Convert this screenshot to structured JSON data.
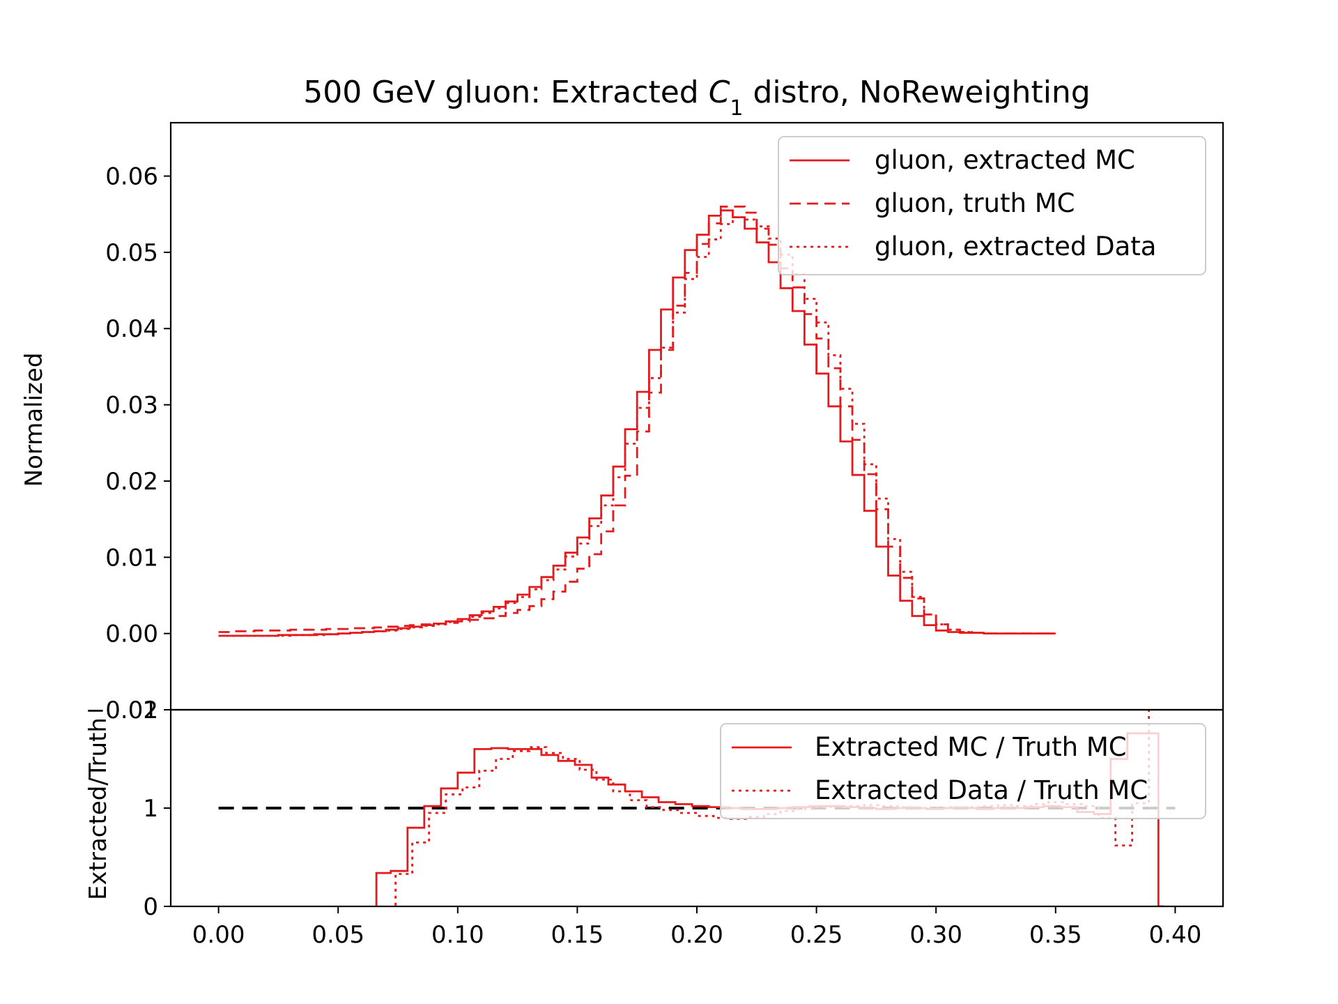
{
  "chart_data": [
    {
      "type": "line",
      "panel": "main",
      "title_prefix": "500 GeV gluon: Extracted ",
      "title_var": "C",
      "title_sub": "1",
      "title_suffix": " distro, NoReweighting",
      "xlabel": "",
      "ylabel": "Normalized",
      "xlim": [
        -0.02,
        0.42
      ],
      "ylim": [
        -0.01,
        0.067
      ],
      "x_ticks": [
        "0.00",
        "0.05",
        "0.10",
        "0.15",
        "0.20",
        "0.25",
        "0.30",
        "0.35",
        "0.40"
      ],
      "y_ticks": [
        "−0.01",
        "0.00",
        "0.01",
        "0.02",
        "0.03",
        "0.04",
        "0.05",
        "0.06"
      ],
      "y_tick_values": [
        -0.01,
        0,
        0.01,
        0.02,
        0.03,
        0.04,
        0.05,
        0.06
      ],
      "bin_edges_start": 0.0,
      "bin_width": 0.005,
      "legend_position": "upper right",
      "series": [
        {
          "name": "gluon, extracted MC",
          "style": "solid",
          "color": "#e41a1c",
          "values": [
            -0.0003,
            -0.0003,
            -0.0003,
            -0.0003,
            -0.0003,
            -0.0002,
            -0.0002,
            -0.0002,
            -0.0001,
            -0.0001,
            0.0,
            0.0001,
            0.0002,
            0.0003,
            0.0005,
            0.0007,
            0.0009,
            0.0011,
            0.0013,
            0.0016,
            0.0019,
            0.0024,
            0.0029,
            0.0035,
            0.0042,
            0.0051,
            0.0061,
            0.0074,
            0.0089,
            0.0106,
            0.0126,
            0.0151,
            0.0181,
            0.0219,
            0.0268,
            0.0317,
            0.0372,
            0.0425,
            0.0467,
            0.0503,
            0.0523,
            0.0548,
            0.0555,
            0.0546,
            0.0531,
            0.0513,
            0.0487,
            0.0453,
            0.0423,
            0.0379,
            0.0341,
            0.0298,
            0.0252,
            0.0208,
            0.0161,
            0.0114,
            0.0076,
            0.0043,
            0.0023,
            0.0011,
            0.0004,
            0.0002,
            0.0001,
            0.0001,
            0.0,
            0.0,
            0.0,
            0.0,
            0.0,
            0.0
          ]
        },
        {
          "name": "gluon, truth MC",
          "style": "dashed",
          "color": "#e41a1c",
          "values": [
            0.0002,
            0.0003,
            0.0003,
            0.0004,
            0.0004,
            0.0004,
            0.0005,
            0.0005,
            0.0005,
            0.0006,
            0.0006,
            0.0007,
            0.0007,
            0.0008,
            0.0009,
            0.001,
            0.0011,
            0.0012,
            0.0013,
            0.0014,
            0.0016,
            0.0018,
            0.002,
            0.0023,
            0.0027,
            0.0031,
            0.0036,
            0.0045,
            0.0055,
            0.0068,
            0.0085,
            0.0104,
            0.0134,
            0.0168,
            0.0207,
            0.0265,
            0.0316,
            0.0372,
            0.043,
            0.0473,
            0.0511,
            0.0538,
            0.056,
            0.056,
            0.0552,
            0.0531,
            0.051,
            0.0479,
            0.0454,
            0.0419,
            0.0387,
            0.0348,
            0.0298,
            0.0254,
            0.0209,
            0.0163,
            0.0114,
            0.0073,
            0.0046,
            0.0025,
            0.0012,
            0.0005,
            0.0002,
            0.0001,
            0.0,
            0.0,
            0.0,
            0.0,
            0.0,
            0.0
          ]
        },
        {
          "name": "gluon, extracted Data",
          "style": "dotted",
          "color": "#e41a1c",
          "values": [
            -0.0003,
            -0.0003,
            -0.0003,
            -0.0003,
            -0.0003,
            -0.0003,
            -0.0002,
            -0.0002,
            -0.0002,
            -0.0001,
            0.0,
            0.0001,
            0.0002,
            0.0003,
            0.0004,
            0.0006,
            0.0008,
            0.001,
            0.0012,
            0.0015,
            0.0018,
            0.0022,
            0.0027,
            0.0033,
            0.004,
            0.0048,
            0.0058,
            0.007,
            0.0084,
            0.0101,
            0.0118,
            0.0141,
            0.0168,
            0.0205,
            0.0249,
            0.0296,
            0.0335,
            0.0375,
            0.0421,
            0.0465,
            0.0494,
            0.0517,
            0.0537,
            0.0546,
            0.0543,
            0.0534,
            0.0518,
            0.0497,
            0.0471,
            0.0439,
            0.0408,
            0.0365,
            0.0321,
            0.0275,
            0.0222,
            0.0177,
            0.0124,
            0.0081,
            0.0048,
            0.0025,
            0.0012,
            0.0005,
            0.0002,
            0.0001,
            0.0,
            0.0,
            0.0,
            0.0,
            0.0,
            0.0
          ]
        }
      ]
    },
    {
      "type": "line",
      "panel": "ratio",
      "xlabel": "",
      "ylabel": "Extracted/Truth",
      "xlim": [
        -0.02,
        0.42
      ],
      "ylim": [
        0,
        2
      ],
      "y_ticks": [
        "0",
        "1",
        "2"
      ],
      "y_tick_values": [
        0,
        1,
        2
      ],
      "reference_line": {
        "y": 1,
        "style": "dashed",
        "color": "#000000"
      },
      "legend_position": "upper right",
      "series": [
        {
          "name": "Extracted MC / Truth MC",
          "style": "solid",
          "color": "#e41a1c",
          "steps": [
            [
              0.066,
              0.072,
              0.34
            ],
            [
              0.072,
              0.079,
              0.36
            ],
            [
              0.079,
              0.086,
              0.8
            ],
            [
              0.086,
              0.093,
              1.02
            ],
            [
              0.093,
              0.1,
              1.2
            ],
            [
              0.1,
              0.107,
              1.36
            ],
            [
              0.107,
              0.114,
              1.6
            ],
            [
              0.114,
              0.121,
              1.61
            ],
            [
              0.121,
              0.128,
              1.6
            ],
            [
              0.128,
              0.135,
              1.6
            ],
            [
              0.135,
              0.142,
              1.54
            ],
            [
              0.142,
              0.149,
              1.48
            ],
            [
              0.149,
              0.156,
              1.44
            ],
            [
              0.156,
              0.163,
              1.31
            ],
            [
              0.163,
              0.17,
              1.24
            ],
            [
              0.17,
              0.177,
              1.17
            ],
            [
              0.177,
              0.184,
              1.11
            ],
            [
              0.184,
              0.191,
              1.06
            ],
            [
              0.191,
              0.198,
              1.04
            ],
            [
              0.198,
              0.205,
              1.02
            ],
            [
              0.205,
              0.212,
              1.01
            ],
            [
              0.212,
              0.219,
              1.0
            ],
            [
              0.219,
              0.226,
              0.99
            ],
            [
              0.226,
              0.233,
              0.99
            ],
            [
              0.233,
              0.24,
              1.0
            ],
            [
              0.24,
              0.247,
              1.01
            ],
            [
              0.247,
              0.254,
              1.02
            ],
            [
              0.254,
              0.261,
              1.02
            ],
            [
              0.261,
              0.268,
              1.01
            ],
            [
              0.268,
              0.275,
              1.0
            ],
            [
              0.275,
              0.282,
              0.99
            ],
            [
              0.282,
              0.289,
              1.0
            ],
            [
              0.289,
              0.296,
              1.0
            ],
            [
              0.296,
              0.303,
              0.99
            ],
            [
              0.303,
              0.31,
              1.0
            ],
            [
              0.31,
              0.317,
              1.0
            ],
            [
              0.317,
              0.324,
              0.99
            ],
            [
              0.324,
              0.331,
              1.0
            ],
            [
              0.331,
              0.338,
              1.0
            ],
            [
              0.338,
              0.345,
              1.01
            ],
            [
              0.345,
              0.352,
              1.02
            ],
            [
              0.352,
              0.359,
              1.01
            ],
            [
              0.359,
              0.366,
              0.96
            ],
            [
              0.366,
              0.373,
              0.94
            ],
            [
              0.373,
              0.38,
              1.5
            ],
            [
              0.38,
              0.387,
              1.76
            ],
            [
              0.387,
              0.393,
              1.76
            ],
            [
              0.393,
              0.395,
              0.0
            ]
          ]
        },
        {
          "name": "Extracted Data / Truth MC",
          "style": "dotted",
          "color": "#e41a1c",
          "steps": [
            [
              0.068,
              0.074,
              -0.1
            ],
            [
              0.074,
              0.081,
              0.33
            ],
            [
              0.081,
              0.088,
              0.65
            ],
            [
              0.088,
              0.095,
              0.95
            ],
            [
              0.095,
              0.102,
              1.14
            ],
            [
              0.102,
              0.109,
              1.21
            ],
            [
              0.109,
              0.116,
              1.38
            ],
            [
              0.116,
              0.123,
              1.5
            ],
            [
              0.123,
              0.13,
              1.58
            ],
            [
              0.13,
              0.137,
              1.62
            ],
            [
              0.137,
              0.144,
              1.56
            ],
            [
              0.144,
              0.151,
              1.5
            ],
            [
              0.151,
              0.158,
              1.39
            ],
            [
              0.158,
              0.165,
              1.29
            ],
            [
              0.165,
              0.172,
              1.17
            ],
            [
              0.172,
              0.179,
              1.08
            ],
            [
              0.179,
              0.186,
              1.01
            ],
            [
              0.186,
              0.193,
              0.98
            ],
            [
              0.193,
              0.2,
              0.95
            ],
            [
              0.2,
              0.207,
              0.92
            ],
            [
              0.207,
              0.214,
              0.9
            ],
            [
              0.214,
              0.221,
              0.89
            ],
            [
              0.221,
              0.228,
              0.91
            ],
            [
              0.228,
              0.235,
              0.94
            ],
            [
              0.235,
              0.242,
              0.97
            ],
            [
              0.242,
              0.249,
              0.99
            ],
            [
              0.249,
              0.256,
              1.01
            ],
            [
              0.256,
              0.263,
              1.02
            ],
            [
              0.263,
              0.27,
              1.02
            ],
            [
              0.27,
              0.277,
              1.03
            ],
            [
              0.277,
              0.284,
              1.02
            ],
            [
              0.284,
              0.291,
              1.01
            ],
            [
              0.291,
              0.298,
              1.0
            ],
            [
              0.298,
              0.305,
              1.0
            ],
            [
              0.305,
              0.312,
              1.01
            ],
            [
              0.312,
              0.319,
              1.01
            ],
            [
              0.319,
              0.326,
              1.02
            ],
            [
              0.326,
              0.333,
              1.03
            ],
            [
              0.333,
              0.34,
              1.02
            ],
            [
              0.34,
              0.347,
              1.04
            ],
            [
              0.347,
              0.354,
              1.06
            ],
            [
              0.354,
              0.361,
              1.04
            ],
            [
              0.361,
              0.368,
              1.02
            ],
            [
              0.368,
              0.375,
              0.9
            ],
            [
              0.375,
              0.382,
              0.62
            ],
            [
              0.382,
              0.389,
              1.05
            ],
            [
              0.389,
              0.393,
              2.1
            ]
          ]
        }
      ]
    }
  ]
}
